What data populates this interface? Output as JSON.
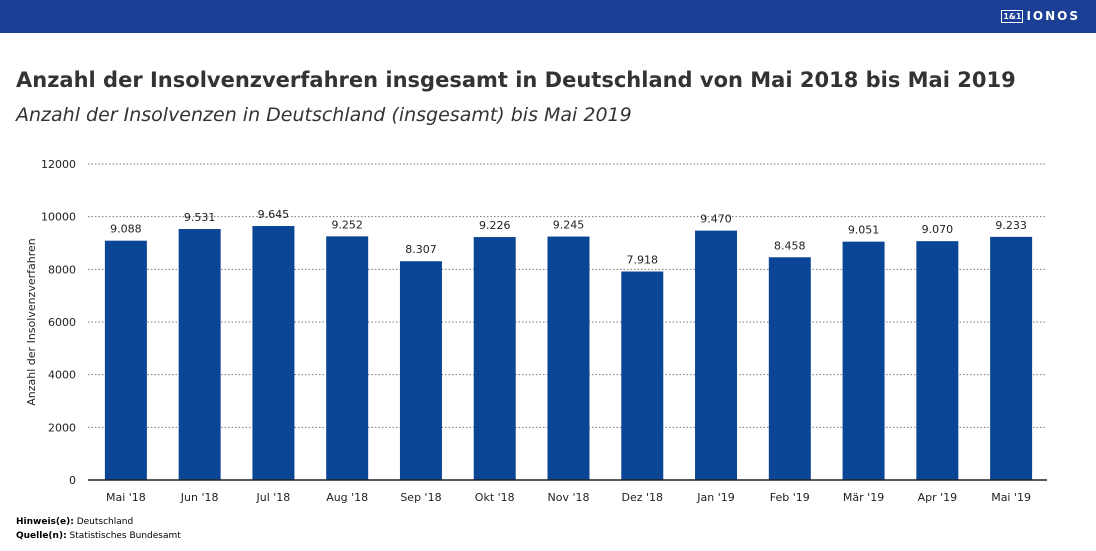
{
  "brand": {
    "logo_box": "1&1",
    "logo_text": "IONOS",
    "bar_color": "#1b3f94"
  },
  "title": "Anzahl der Insolvenzverfahren insgesamt in Deutschland von Mai 2018 bis Mai 2019",
  "subtitle": "Anzahl der Insolvenzen in Deutschland (insgesamt) bis Mai 2019",
  "notes": {
    "hint_label": "Hinweis(e):",
    "hint_value": "Deutschland",
    "source_label": "Quelle(n):",
    "source_value": "Statistisches Bundesamt"
  },
  "chart_data": {
    "type": "bar",
    "categories": [
      "Mai '18",
      "Jun '18",
      "Jul '18",
      "Aug '18",
      "Sep '18",
      "Okt '18",
      "Nov '18",
      "Dez '18",
      "Jan '19",
      "Feb '19",
      "Mär '19",
      "Apr '19",
      "Mai '19"
    ],
    "values": [
      9088,
      9531,
      9645,
      9252,
      8307,
      9226,
      9245,
      7918,
      9470,
      8458,
      9051,
      9070,
      9233
    ],
    "data_labels": [
      "9.088",
      "9.531",
      "9.645",
      "9.252",
      "8.307",
      "9.226",
      "9.245",
      "7.918",
      "9.470",
      "8.458",
      "9.051",
      "9.070",
      "9.233"
    ],
    "ylabel": "Anzahl der Insolvenzverfahren",
    "ylim": [
      0,
      12000
    ],
    "yticks": [
      0,
      2000,
      4000,
      6000,
      8000,
      10000,
      12000
    ],
    "grid": true,
    "bar_color": "#0b4596"
  }
}
